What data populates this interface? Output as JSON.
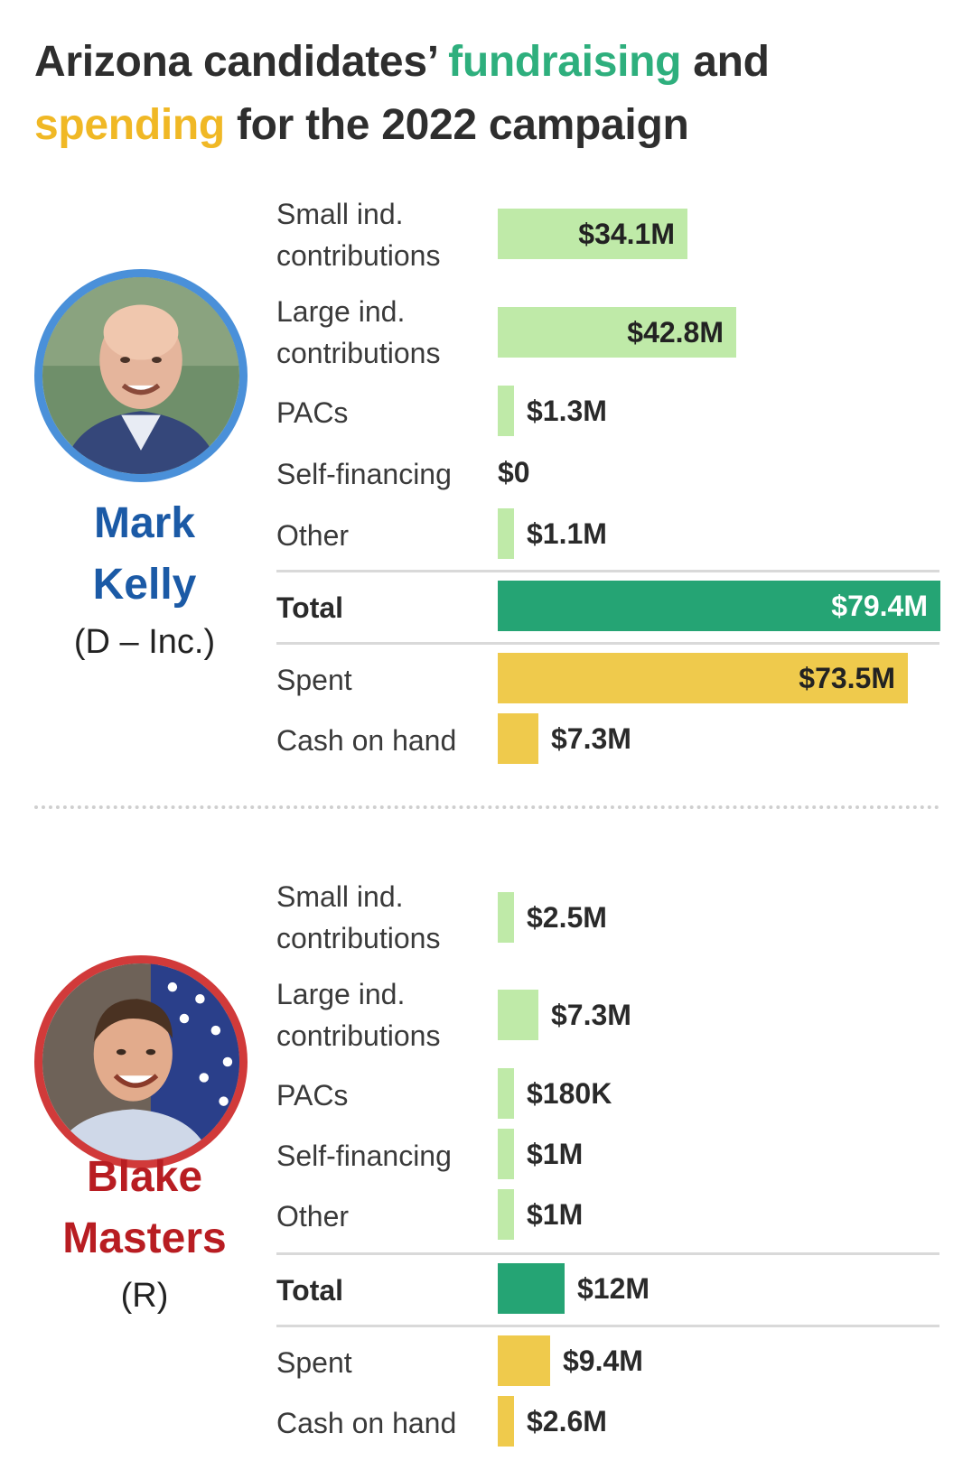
{
  "title": {
    "part1": "Arizona candidates’ ",
    "highlight1": "fundraising",
    "part2": " and",
    "highlight2": "spending",
    "part3": " for the 2022 campaign"
  },
  "colors": {
    "fundraising_bar": "#bfeaa8",
    "total_bar": "#25a474",
    "spending_bar": "#efca4c",
    "democrat": "#1b5aa6",
    "republican": "#b81d22"
  },
  "chart_data": {
    "type": "bar",
    "title": "Arizona candidates’ fundraising and spending for the 2022 campaign",
    "unit": "USD millions",
    "categories": [
      "Small ind. contributions",
      "Large ind. contributions",
      "PACs",
      "Self-financing",
      "Other",
      "Total",
      "Spent",
      "Cash on hand"
    ],
    "series": [
      {
        "name": "Mark Kelly",
        "party": "(D – Inc.)",
        "values": [
          34.1,
          42.8,
          1.3,
          0,
          1.1,
          79.4,
          73.5,
          7.3
        ],
        "labels": [
          "$34.1M",
          "$42.8M",
          "$1.3M",
          "$0",
          "$1.1M",
          "$79.4M",
          "$73.5M",
          "$7.3M"
        ]
      },
      {
        "name": "Blake Masters",
        "party": "(R)",
        "values": [
          2.5,
          7.3,
          0.18,
          1,
          1,
          12,
          9.4,
          2.6
        ],
        "labels": [
          "$2.5M",
          "$7.3M",
          "$180K",
          "$1M",
          "$1M",
          "$12M",
          "$9.4M",
          "$2.6M"
        ]
      }
    ],
    "xlabel": "",
    "ylabel": "",
    "xlim": [
      0,
      79.4
    ]
  },
  "candidates": [
    {
      "first": "Mark",
      "last": "Kelly",
      "party": "(D – Inc.)",
      "rows": [
        {
          "label": "Small ind.",
          "label2": "contributions",
          "value": "$34.1M"
        },
        {
          "label": "Large ind.",
          "label2": "contributions",
          "value": "$42.8M"
        },
        {
          "label": "PACs",
          "value": "$1.3M"
        },
        {
          "label": "Self-financing",
          "value": "$0"
        },
        {
          "label": "Other",
          "value": "$1.1M"
        },
        {
          "label": "Total",
          "value": "$79.4M"
        },
        {
          "label": "Spent",
          "value": "$73.5M"
        },
        {
          "label": "Cash on hand",
          "value": "$7.3M"
        }
      ]
    },
    {
      "first": "Blake",
      "last": "Masters",
      "party": "(R)",
      "rows": [
        {
          "label": "Small ind.",
          "label2": "contributions",
          "value": "$2.5M"
        },
        {
          "label": "Large ind.",
          "label2": "contributions",
          "value": "$7.3M"
        },
        {
          "label": "PACs",
          "value": "$180K"
        },
        {
          "label": "Self-financing",
          "value": "$1M"
        },
        {
          "label": "Other",
          "value": "$1M"
        },
        {
          "label": "Total",
          "value": "$12M"
        },
        {
          "label": "Spent",
          "value": "$9.4M"
        },
        {
          "label": "Cash on hand",
          "value": "$2.6M"
        }
      ]
    }
  ]
}
